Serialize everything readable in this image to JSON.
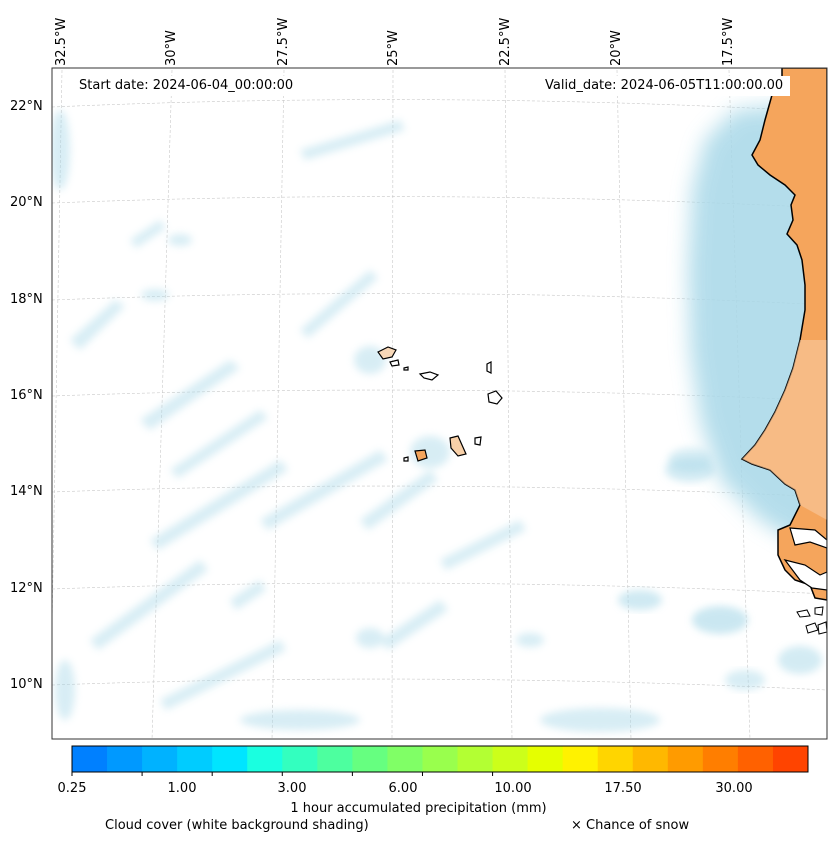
{
  "map": {
    "start_date_label": "Start date: 2024-06-04_00:00:00",
    "valid_date_label": "Valid_date: 2024-06-05T11:00:00.00",
    "longitude_labels": [
      "32.5°W",
      "30°W",
      "27.5°W",
      "25°W",
      "22.5°W",
      "20°W",
      "17.5°W"
    ],
    "latitude_labels": [
      "22°N",
      "20°N",
      "18°N",
      "16°N",
      "14°N",
      "12°N",
      "10°N"
    ],
    "region": "Cape Verde Islands and West African coast"
  },
  "colorbar": {
    "title": "1 hour accumulated precipitation (mm)",
    "tick_labels": [
      "0.25",
      "1.00",
      "3.00",
      "6.00",
      "10.00",
      "17.50",
      "30.00"
    ],
    "colors": [
      "#0080ff",
      "#0099ff",
      "#00b2ff",
      "#00ccff",
      "#00e5ff",
      "#1affe0",
      "#33ffbf",
      "#4dff9f",
      "#66ff80",
      "#80ff66",
      "#99ff4d",
      "#b3ff33",
      "#ccff1a",
      "#e5ff00",
      "#fff200",
      "#ffd500",
      "#ffb800",
      "#ff9b00",
      "#ff7e00",
      "#ff6100",
      "#ff4400"
    ]
  },
  "legend": {
    "cloud_cover": "Cloud cover (white background shading)",
    "snow": "× Chance of snow"
  },
  "colors": {
    "land": "#f5a55c",
    "cloud": "#a8d8e8",
    "coast": "#000000"
  }
}
